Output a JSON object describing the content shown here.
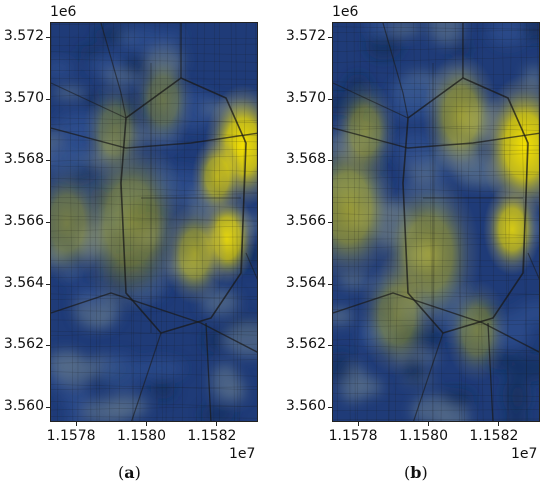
{
  "panels": [
    {
      "id": "a",
      "caption_open": "(",
      "caption_letter": "a",
      "caption_close": ")",
      "y_offset": "1e6",
      "x_offset": "1e7",
      "y_ticks": [
        "3.572",
        "3.570",
        "3.568",
        "3.566",
        "3.564",
        "3.562",
        "3.560"
      ],
      "x_ticks": [
        "1.1578",
        "1.1580",
        "1.1582"
      ]
    },
    {
      "id": "b",
      "caption_open": "(",
      "caption_letter": "b",
      "caption_close": ")",
      "y_offset": "1e6",
      "x_offset": "1e7",
      "y_ticks": [
        "3.572",
        "3.570",
        "3.568",
        "3.566",
        "3.564",
        "3.562",
        "3.560"
      ],
      "x_ticks": [
        "1.1578",
        "1.1580",
        "1.1582"
      ]
    }
  ],
  "colors": {
    "low": "#1f3b78",
    "mid": "#8c8c6a",
    "high": "#f5e100",
    "road": "#1a1a1a"
  },
  "heat_spots_a": [
    {
      "x": 1.1583,
      "y": 3.5685,
      "r": 0.00012,
      "level": 1.0
    },
    {
      "x": 1.15825,
      "y": 3.5655,
      "r": 9e-05,
      "level": 0.9
    },
    {
      "x": 1.15822,
      "y": 3.5675,
      "r": 8e-05,
      "level": 0.7
    },
    {
      "x": 1.15815,
      "y": 3.565,
      "r": 0.0001,
      "level": 0.6
    },
    {
      "x": 1.15795,
      "y": 3.566,
      "r": 0.00018,
      "level": 0.45
    },
    {
      "x": 1.15775,
      "y": 3.566,
      "r": 0.00012,
      "level": 0.4
    },
    {
      "x": 1.15805,
      "y": 3.57,
      "r": 0.0001,
      "level": 0.35
    },
    {
      "x": 1.1579,
      "y": 3.569,
      "r": 0.0001,
      "level": 0.35
    }
  ],
  "heat_spots_b": [
    {
      "x": 1.1583,
      "y": 3.5685,
      "r": 0.00014,
      "level": 1.0
    },
    {
      "x": 1.15826,
      "y": 3.5658,
      "r": 9e-05,
      "level": 0.85
    },
    {
      "x": 1.1581,
      "y": 3.5695,
      "r": 0.00012,
      "level": 0.55
    },
    {
      "x": 1.15775,
      "y": 3.5665,
      "r": 0.00015,
      "level": 0.55
    },
    {
      "x": 1.158,
      "y": 3.565,
      "r": 0.00016,
      "level": 0.5
    },
    {
      "x": 1.1579,
      "y": 3.563,
      "r": 0.00012,
      "level": 0.4
    },
    {
      "x": 1.15815,
      "y": 3.5625,
      "r": 0.0001,
      "level": 0.4
    },
    {
      "x": 1.1578,
      "y": 3.569,
      "r": 0.0001,
      "level": 0.45
    }
  ]
}
